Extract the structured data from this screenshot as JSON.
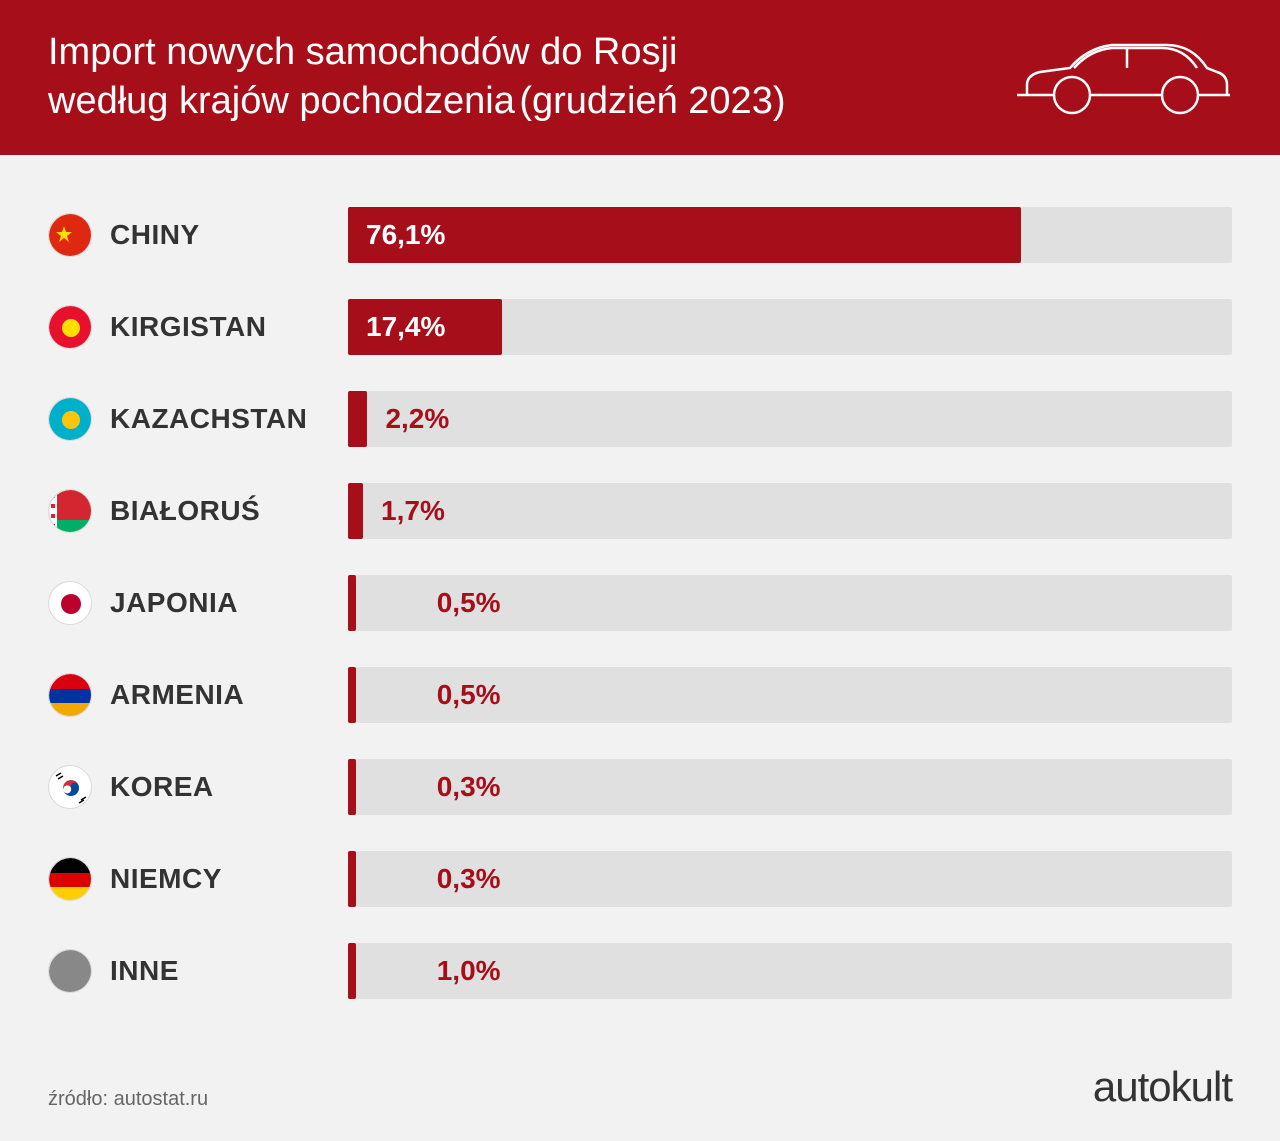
{
  "header": {
    "title_line1": "Import nowych samochodów do Rosji",
    "title_line2_bold": "według krajów pochodzenia",
    "title_line2_light": "(grudzień 2023)"
  },
  "chart": {
    "type": "bar",
    "bar_color": "#a60f1a",
    "bar_bg_color": "#e0e0e0",
    "background_color": "#f2f2f2",
    "max_percent": 100,
    "label_fontsize": 28,
    "value_fontsize": 28,
    "rows": [
      {
        "country": "CHINY",
        "value": 76.1,
        "display": "76,1%",
        "min_bar": false
      },
      {
        "country": "KIRGISTAN",
        "value": 17.4,
        "display": "17,4%",
        "min_bar": false
      },
      {
        "country": "KAZACHSTAN",
        "value": 2.2,
        "display": "2,2%",
        "min_bar": false
      },
      {
        "country": "BIAŁORUŚ",
        "value": 1.7,
        "display": "1,7%",
        "min_bar": false
      },
      {
        "country": "JAPONIA",
        "value": 0.5,
        "display": "0,5%",
        "min_bar": true
      },
      {
        "country": "ARMENIA",
        "value": 0.5,
        "display": "0,5%",
        "min_bar": true
      },
      {
        "country": "KOREA",
        "value": 0.3,
        "display": "0,3%",
        "min_bar": true
      },
      {
        "country": "NIEMCY",
        "value": 0.3,
        "display": "0,3%",
        "min_bar": true
      },
      {
        "country": "INNE",
        "value": 1.0,
        "display": "1,0%",
        "min_bar": true
      }
    ]
  },
  "flags": {
    "CHINY": {
      "type": "solid_star",
      "bg": "#de2910",
      "star": "#ffde00"
    },
    "KIRGISTAN": {
      "type": "solid_sun",
      "bg": "#e8112d",
      "sun": "#ffde00"
    },
    "KAZACHSTAN": {
      "type": "solid_sun",
      "bg": "#00afca",
      "sun": "#fec50c"
    },
    "BIAŁORUŚ": {
      "type": "belarus",
      "top": "#d22730",
      "bottom": "#00af66",
      "stripe": "#fff"
    },
    "JAPONIA": {
      "type": "japan",
      "bg": "#fff",
      "dot": "#bc002d"
    },
    "ARMENIA": {
      "type": "tristripe",
      "c1": "#d90012",
      "c2": "#0033a0",
      "c3": "#f2a800"
    },
    "KOREA": {
      "type": "korea",
      "bg": "#fff",
      "red": "#cd2e3a",
      "blue": "#0047a0"
    },
    "NIEMCY": {
      "type": "tristripe",
      "c1": "#000000",
      "c2": "#dd0000",
      "c3": "#ffce00"
    },
    "INNE": {
      "type": "solid",
      "bg": "#888888"
    }
  },
  "footer": {
    "source": "źródło: autostat.ru",
    "brand": "autokult"
  }
}
